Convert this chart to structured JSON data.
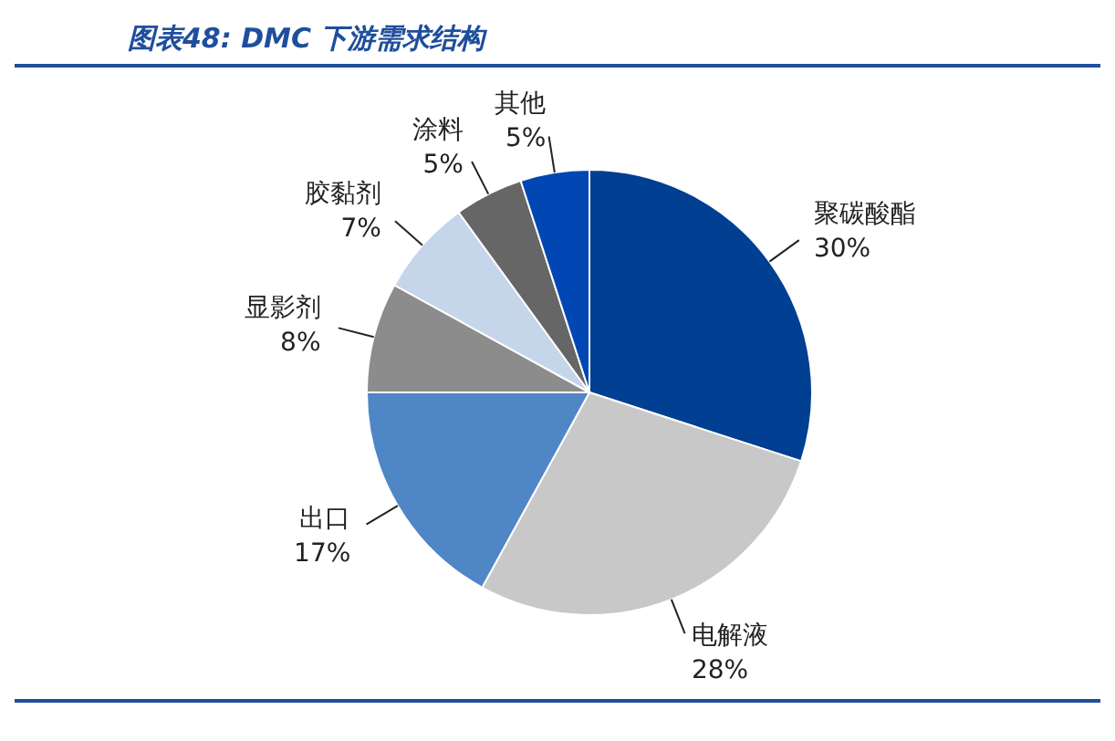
{
  "chart_data": {
    "type": "pie",
    "title": "图表48:  DMC 下游需求结构",
    "categories": [
      "聚碳酸酯",
      "电解液",
      "出口",
      "显影剂",
      "胶黏剂",
      "涂料",
      "其他"
    ],
    "values": [
      30,
      28,
      17,
      8,
      7,
      5,
      5
    ],
    "colors": [
      "#003f91",
      "#c8c8c8",
      "#4f86c6",
      "#8c8c8c",
      "#c5d5ea",
      "#666666",
      "#0047b3"
    ],
    "value_labels": [
      "30%",
      "28%",
      "17%",
      "8%",
      "7%",
      "5%",
      "5%"
    ],
    "legend": false
  }
}
